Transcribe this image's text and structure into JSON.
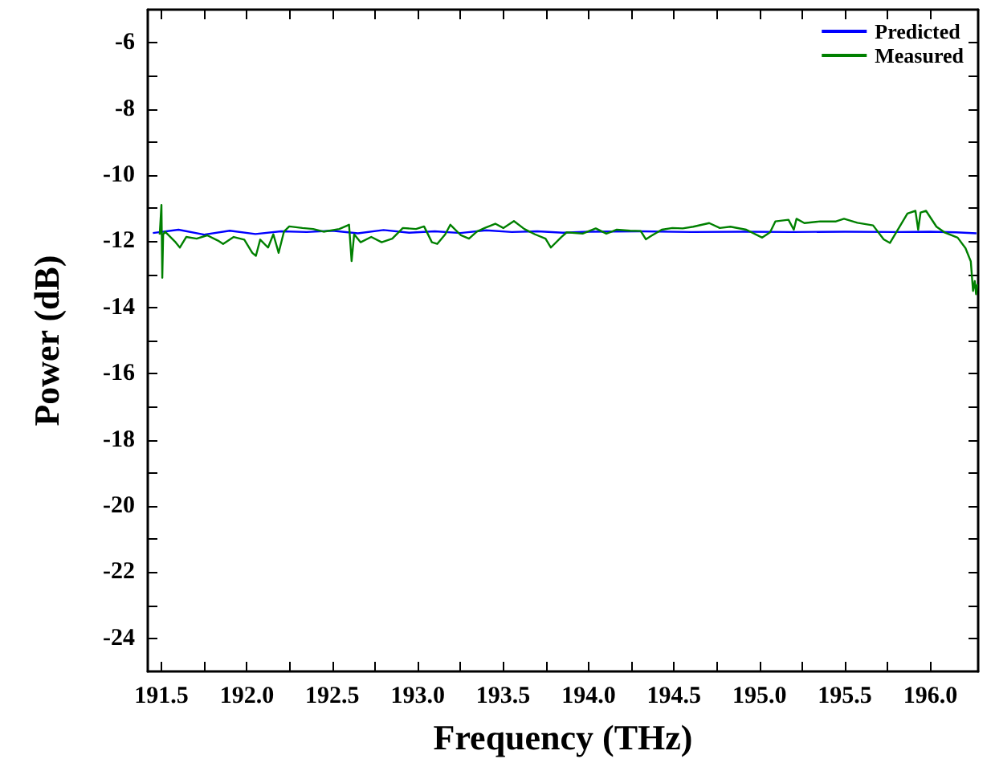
{
  "chart_data": {
    "type": "line",
    "xlabel": "Frequency (THz)",
    "ylabel": "Power (dB)",
    "xlim": [
      191.42,
      196.28
    ],
    "ylim": [
      -25,
      -5
    ],
    "xticks": [
      {
        "value": 191.5,
        "label": "191.5"
      },
      {
        "value": 191.75,
        "label": null
      },
      {
        "value": 192,
        "label": "192.0"
      },
      {
        "value": 192.25,
        "label": null
      },
      {
        "value": 192.5,
        "label": "192.5"
      },
      {
        "value": 192.75,
        "label": null
      },
      {
        "value": 193,
        "label": "193.0"
      },
      {
        "value": 193.25,
        "label": null
      },
      {
        "value": 193.5,
        "label": "193.5"
      },
      {
        "value": 193.75,
        "label": null
      },
      {
        "value": 194,
        "label": "194.0"
      },
      {
        "value": 194.25,
        "label": null
      },
      {
        "value": 194.5,
        "label": "194.5"
      },
      {
        "value": 194.75,
        "label": null
      },
      {
        "value": 195,
        "label": "195.0"
      },
      {
        "value": 195.25,
        "label": null
      },
      {
        "value": 195.5,
        "label": "195.5"
      },
      {
        "value": 195.75,
        "label": null
      },
      {
        "value": 196,
        "label": "196.0"
      }
    ],
    "yticks": [
      -24,
      {
        "value": -23,
        "label": null
      },
      -22,
      {
        "value": -21,
        "label": null
      },
      -20,
      {
        "value": -19,
        "label": null
      },
      -18,
      {
        "value": -17,
        "label": null
      },
      -16,
      {
        "value": -15,
        "label": null
      },
      -14,
      {
        "value": -13,
        "label": null
      },
      -12,
      {
        "value": -11,
        "label": null
      },
      -10,
      {
        "value": -9,
        "label": null
      },
      -8,
      {
        "value": -7,
        "label": null
      },
      -6
    ],
    "grid": false,
    "legend": "top right",
    "marker": "none",
    "line_style": "solid",
    "series": [
      {
        "name": "Predicted",
        "color": "#0000ff",
        "x": [
          191.45,
          191.6,
          191.75,
          191.9,
          192.05,
          192.2,
          192.35,
          192.5,
          192.65,
          192.8,
          192.95,
          193.1,
          193.25,
          193.4,
          193.55,
          193.7,
          193.85,
          194.0,
          194.3,
          194.6,
          194.9,
          195.2,
          195.5,
          195.8,
          196.0,
          196.15,
          196.27
        ],
        "values": [
          -11.75,
          -11.65,
          -11.8,
          -11.68,
          -11.78,
          -11.7,
          -11.72,
          -11.68,
          -11.76,
          -11.66,
          -11.74,
          -11.7,
          -11.75,
          -11.67,
          -11.72,
          -11.7,
          -11.74,
          -11.71,
          -11.7,
          -11.72,
          -11.71,
          -11.72,
          -11.71,
          -11.72,
          -11.71,
          -11.73,
          -11.76
        ]
      },
      {
        "name": "Measured",
        "color": "#008000",
        "x": [
          191.49,
          191.5,
          191.505,
          191.51,
          191.521,
          191.583,
          191.608,
          191.645,
          191.706,
          191.768,
          191.831,
          191.861,
          191.923,
          191.985,
          192.032,
          192.053,
          192.078,
          192.124,
          192.155,
          192.186,
          192.217,
          192.248,
          192.325,
          192.388,
          192.449,
          192.541,
          192.598,
          192.613,
          192.628,
          192.666,
          192.728,
          192.789,
          192.851,
          192.913,
          192.99,
          193.037,
          193.083,
          193.114,
          193.161,
          193.191,
          193.253,
          193.3,
          193.346,
          193.392,
          193.454,
          193.501,
          193.563,
          193.624,
          193.686,
          193.748,
          193.779,
          193.841,
          193.872,
          193.965,
          194.042,
          194.104,
          194.165,
          194.243,
          194.305,
          194.335,
          194.366,
          194.428,
          194.49,
          194.551,
          194.613,
          194.706,
          194.768,
          194.83,
          194.923,
          195.016,
          195.062,
          195.093,
          195.17,
          195.201,
          195.217,
          195.263,
          195.356,
          195.448,
          195.495,
          195.573,
          195.665,
          195.727,
          195.764,
          195.82,
          195.866,
          195.913,
          195.929,
          195.943,
          195.975,
          196.036,
          196.083,
          196.16,
          196.206,
          196.237,
          196.25,
          196.26,
          196.268,
          196.275
        ],
        "values": [
          -11.8,
          -10.9,
          -13.1,
          -11.8,
          -11.71,
          -12.03,
          -12.19,
          -11.87,
          -11.92,
          -11.82,
          -11.98,
          -12.08,
          -11.87,
          -11.95,
          -12.35,
          -12.44,
          -11.95,
          -12.19,
          -11.79,
          -12.35,
          -11.71,
          -11.55,
          -11.6,
          -11.63,
          -11.71,
          -11.63,
          -11.5,
          -12.6,
          -11.79,
          -12.03,
          -11.87,
          -12.03,
          -11.92,
          -11.6,
          -11.63,
          -11.55,
          -12.03,
          -12.08,
          -11.79,
          -11.5,
          -11.82,
          -11.92,
          -11.71,
          -11.6,
          -11.47,
          -11.6,
          -11.39,
          -11.63,
          -11.79,
          -11.92,
          -12.19,
          -11.87,
          -11.73,
          -11.77,
          -11.61,
          -11.77,
          -11.65,
          -11.68,
          -11.69,
          -11.94,
          -11.84,
          -11.65,
          -11.6,
          -11.61,
          -11.56,
          -11.45,
          -11.6,
          -11.56,
          -11.65,
          -11.89,
          -11.73,
          -11.4,
          -11.35,
          -11.65,
          -11.32,
          -11.45,
          -11.4,
          -11.4,
          -11.32,
          -11.44,
          -11.52,
          -11.94,
          -12.05,
          -11.56,
          -11.16,
          -11.08,
          -11.65,
          -11.13,
          -11.08,
          -11.56,
          -11.73,
          -11.89,
          -12.21,
          -12.61,
          -13.5,
          -13.2,
          -13.6,
          -13.3
        ]
      }
    ]
  }
}
